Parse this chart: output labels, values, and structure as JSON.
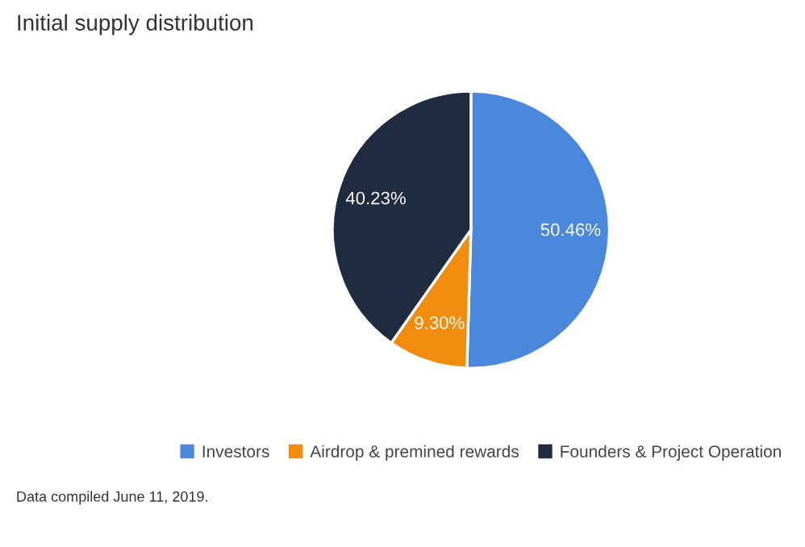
{
  "chart_data": {
    "type": "pie",
    "title": "Initial supply distribution",
    "categories": [
      "Investors",
      "Airdrop & premined rewards",
      "Founders & Project Operation"
    ],
    "values": [
      50.46,
      9.3,
      40.23
    ],
    "value_labels": [
      "50.46%",
      "9.30%",
      "40.23%"
    ],
    "colors": [
      "#4a88dc",
      "#f28c0f",
      "#1f2b3f"
    ],
    "legend": "bottom",
    "annotations": [
      "Data compiled June 11, 2019."
    ]
  }
}
